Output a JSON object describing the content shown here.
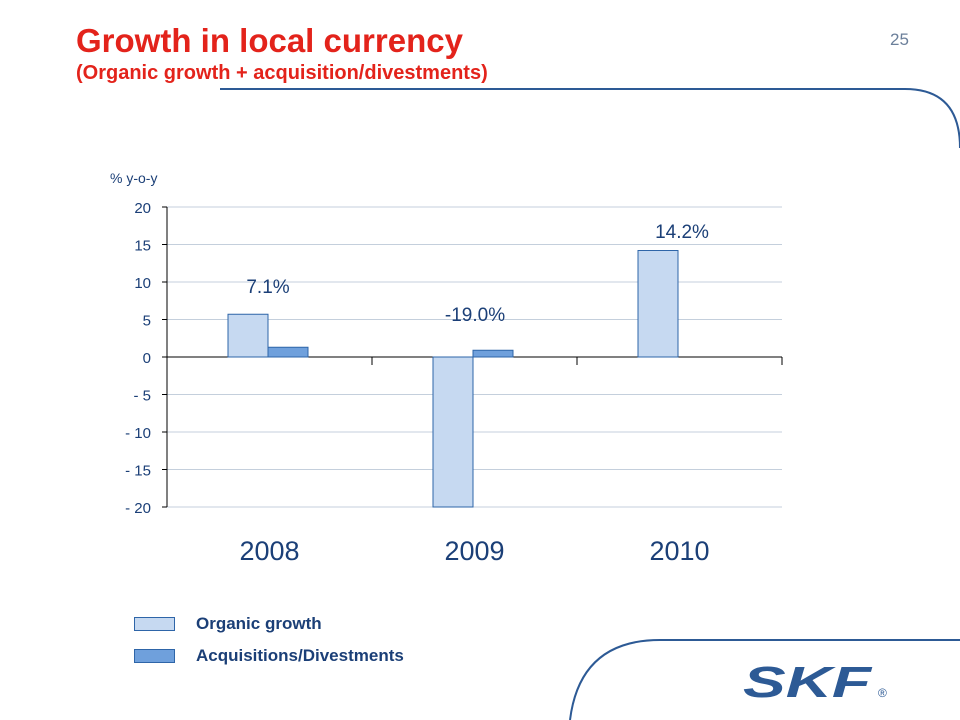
{
  "header": {
    "title": "Growth in local currency",
    "subtitle": "(Organic growth + acquisition/divestments)",
    "page_number": "25"
  },
  "brand": {
    "logo_text": "SKF",
    "registered_mark": "®",
    "accent_color": "#e3231b",
    "frame_color": "#2d5a95"
  },
  "chart_data": {
    "type": "bar",
    "ylabel": "% y-o-y",
    "ylim": [
      -20,
      20
    ],
    "yticks": [
      20,
      15,
      10,
      5,
      0,
      -5,
      -10,
      -15,
      -20
    ],
    "ytick_labels": [
      "20",
      "15",
      "10",
      "5",
      "0",
      "- 5",
      "- 10",
      "- 15",
      "- 20"
    ],
    "grid": true,
    "categories": [
      "2008",
      "2009",
      "2010"
    ],
    "series": [
      {
        "name": "Organic growth",
        "color": "#c6d9f1",
        "values": [
          5.7,
          -20,
          14.2
        ]
      },
      {
        "name": "Acquisitions/Divestments",
        "color": "#6fa0dc",
        "values": [
          1.3,
          0.9,
          null
        ]
      }
    ],
    "data_labels": [
      "7.1%",
      "-19.0%",
      "14.2%"
    ],
    "legend_position": "bottom-left"
  }
}
